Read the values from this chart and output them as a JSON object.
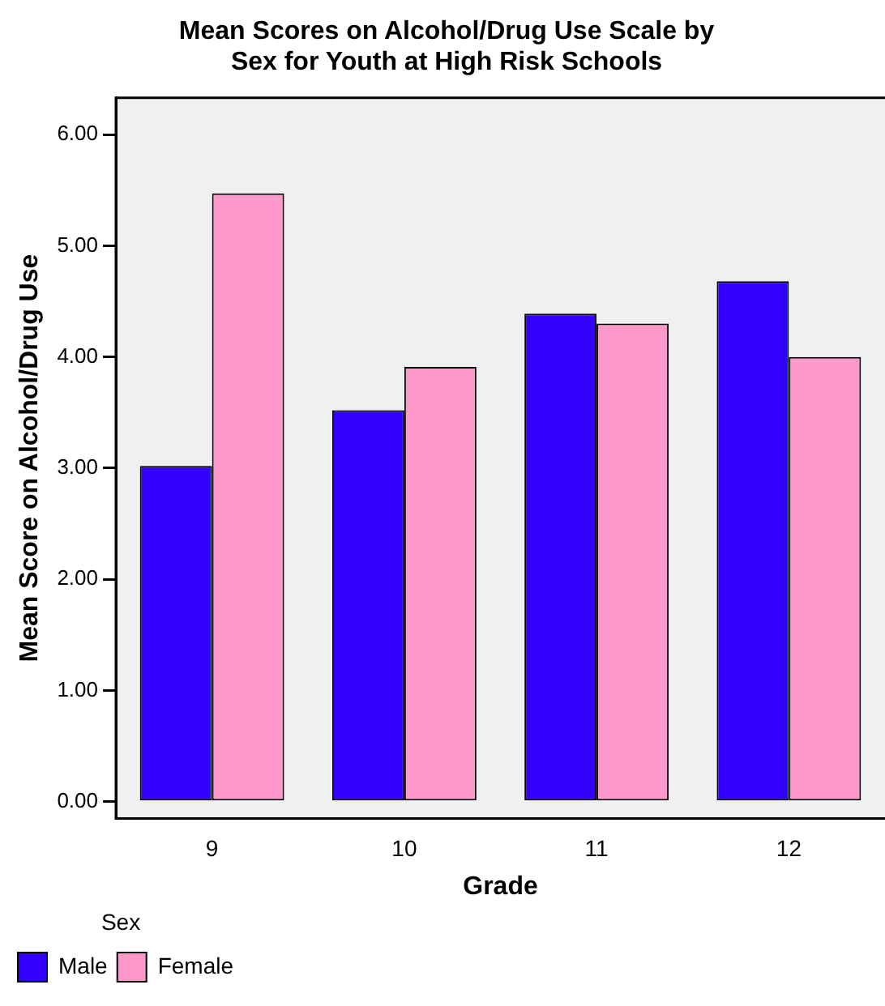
{
  "chart_data": {
    "type": "bar",
    "title": "Mean Scores on Alcohol/Drug Use Scale by Sex for Youth at High Risk Schools",
    "xlabel": "Grade",
    "ylabel": "Mean Score on Alcohol/Drug Use",
    "legend_title": "Sex",
    "categories": [
      "9",
      "10",
      "11",
      "12"
    ],
    "series": [
      {
        "name": "Male",
        "color": "#3300ff",
        "values": [
          3.02,
          3.52,
          4.39,
          4.68
        ]
      },
      {
        "name": "Female",
        "color": "#ff99cc",
        "values": [
          5.47,
          3.91,
          4.3,
          4.0
        ]
      }
    ],
    "ylim": [
      -0.15,
      6.33
    ],
    "yticks": [
      {
        "value": 0,
        "label": "0.00"
      },
      {
        "value": 1,
        "label": "1.00"
      },
      {
        "value": 2,
        "label": "2.00"
      },
      {
        "value": 3,
        "label": "3.00"
      },
      {
        "value": 4,
        "label": "4.00"
      },
      {
        "value": 5,
        "label": "5.00"
      },
      {
        "value": 6,
        "label": "6.00"
      }
    ],
    "grid": false,
    "legend": "bottom left"
  }
}
